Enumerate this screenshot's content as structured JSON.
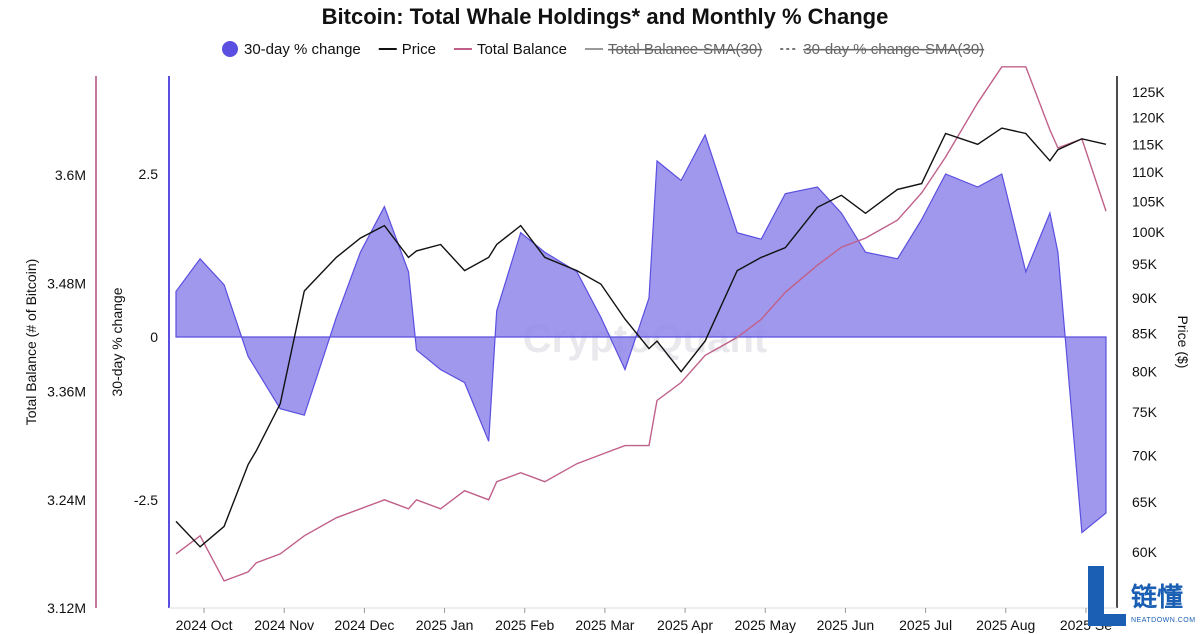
{
  "chart_data": {
    "type": "area",
    "title": "Bitcoin: Total Whale Holdings* and Monthly % Change",
    "legend": [
      {
        "label": "30-day % change",
        "color": "#5a4fe0",
        "style": "dot",
        "enabled": true
      },
      {
        "label": "Price",
        "color": "#111111",
        "style": "line",
        "enabled": true
      },
      {
        "label": "Total Balance",
        "color": "#c0608a",
        "style": "line",
        "enabled": true
      },
      {
        "label": "Total Balance-SMA(30)",
        "color": "#999999",
        "style": "line",
        "enabled": false
      },
      {
        "label": "30-day % change-SMA(30)",
        "color": "#777777",
        "style": "dash",
        "enabled": false
      }
    ],
    "x_ticks": [
      "2024 Oct",
      "2024 Nov",
      "2024 Dec",
      "2025 Jan",
      "2025 Feb",
      "2025 Mar",
      "2025 Apr",
      "2025 May",
      "2025 Jun",
      "2025 Jul",
      "2025 Aug",
      "2025 Se"
    ],
    "left_axis": {
      "label": "Total Balance (# of Bitcoin)",
      "ticks": [
        "3.6M",
        "3.48M",
        "3.36M",
        "3.24M",
        "3.12M"
      ],
      "values": [
        3600000,
        3480000,
        3360000,
        3240000,
        3120000
      ]
    },
    "mid_axis": {
      "label": "30-day % change",
      "ticks": [
        "2.5",
        "0",
        "-2.5"
      ],
      "values": [
        2.5,
        0,
        -2.5
      ]
    },
    "right_axis": {
      "label": "Price ($)",
      "ticks": [
        "125K",
        "120K",
        "115K",
        "110K",
        "105K",
        "100K",
        "95K",
        "90K",
        "85K",
        "80K",
        "75K",
        "70K",
        "65K",
        "60K"
      ],
      "values": [
        125000,
        120000,
        115000,
        110000,
        105000,
        100000,
        95000,
        90000,
        85000,
        80000,
        75000,
        70000,
        65000,
        60000
      ]
    },
    "pct_change": {
      "months": [
        0,
        0.3,
        0.6,
        0.9,
        1.0,
        1.3,
        1.6,
        2.0,
        2.3,
        2.6,
        2.9,
        3.0,
        3.3,
        3.6,
        3.9,
        4.0,
        4.3,
        4.6,
        5.0,
        5.3,
        5.6,
        5.9,
        6.0,
        6.3,
        6.6,
        7.0,
        7.3,
        7.6,
        8.0,
        8.3,
        8.6,
        9.0,
        9.3,
        9.6,
        10.0,
        10.3,
        10.6,
        10.9,
        11.0,
        11.3,
        11.6
      ],
      "values": [
        0.7,
        1.2,
        0.8,
        -0.3,
        -0.5,
        -1.1,
        -1.2,
        0.3,
        1.3,
        2.0,
        1.0,
        -0.2,
        -0.5,
        -0.7,
        -1.6,
        0.4,
        1.6,
        1.3,
        1.0,
        0.3,
        -0.5,
        0.6,
        2.7,
        2.4,
        3.1,
        1.6,
        1.5,
        2.2,
        2.3,
        1.9,
        1.3,
        1.2,
        1.8,
        2.5,
        2.3,
        2.5,
        1.0,
        1.9,
        1.3,
        -3.0,
        -2.7
      ]
    },
    "price": {
      "months": [
        0,
        0.3,
        0.6,
        0.9,
        1.0,
        1.3,
        1.6,
        2.0,
        2.3,
        2.6,
        2.9,
        3.0,
        3.3,
        3.6,
        3.9,
        4.0,
        4.3,
        4.6,
        5.0,
        5.3,
        5.6,
        5.9,
        6.0,
        6.3,
        6.6,
        7.0,
        7.3,
        7.6,
        8.0,
        8.3,
        8.6,
        9.0,
        9.3,
        9.6,
        10.0,
        10.3,
        10.6,
        10.9,
        11.0,
        11.3,
        11.6
      ],
      "values": [
        63000,
        60500,
        62500,
        69000,
        70500,
        76000,
        91000,
        96000,
        99000,
        101000,
        96000,
        97000,
        98000,
        94000,
        96000,
        98000,
        101000,
        96000,
        94000,
        92000,
        87000,
        83000,
        84000,
        80000,
        84000,
        94000,
        96000,
        97500,
        104000,
        106000,
        103000,
        107000,
        108000,
        117000,
        115000,
        118000,
        117000,
        112000,
        114000,
        116000,
        115000
      ]
    },
    "total_balance": {
      "months": [
        0,
        0.3,
        0.6,
        0.9,
        1.0,
        1.3,
        1.6,
        2.0,
        2.3,
        2.6,
        2.9,
        3.0,
        3.3,
        3.6,
        3.9,
        4.0,
        4.3,
        4.6,
        5.0,
        5.3,
        5.6,
        5.9,
        6.0,
        6.3,
        6.6,
        7.0,
        7.3,
        7.6,
        8.0,
        8.3,
        8.6,
        9.0,
        9.3,
        9.6,
        10.0,
        10.3,
        10.6,
        10.9,
        11.0,
        11.3,
        11.6
      ],
      "values": [
        3180000,
        3200000,
        3150000,
        3160000,
        3170000,
        3180000,
        3200000,
        3220000,
        3230000,
        3240000,
        3230000,
        3240000,
        3230000,
        3250000,
        3240000,
        3260000,
        3270000,
        3260000,
        3280000,
        3290000,
        3300000,
        3300000,
        3350000,
        3370000,
        3400000,
        3420000,
        3440000,
        3470000,
        3500000,
        3520000,
        3530000,
        3550000,
        3580000,
        3620000,
        3680000,
        3720000,
        3720000,
        3650000,
        3630000,
        3640000,
        3560000
      ]
    }
  },
  "watermark": "CryptoQuant",
  "brand": {
    "cn": "链懂",
    "sub": "NEATDOWN.COM"
  }
}
